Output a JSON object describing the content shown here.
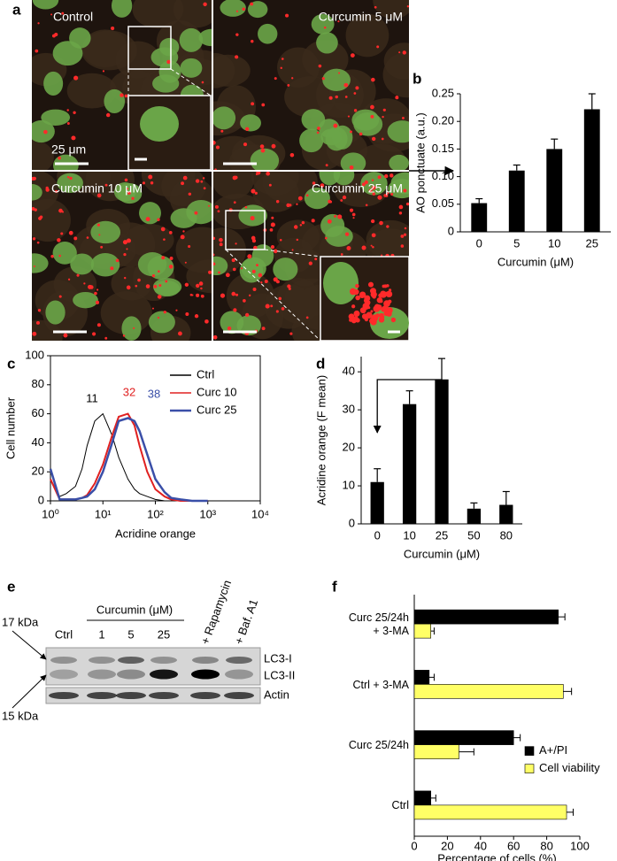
{
  "panel_labels": [
    "a",
    "b",
    "c",
    "d",
    "e",
    "f"
  ],
  "micrographs": {
    "labels": [
      "Control",
      "Curcumin 5 μM",
      "Curcumin 10 μM",
      "Curcumin 25 μM"
    ],
    "scale_label": "25 μm"
  },
  "blot": {
    "header": "Curcumin (μM)",
    "lanes": [
      "Ctrl",
      "1",
      "5",
      "25",
      "+ Rapamycin",
      "+ Baf. A1"
    ],
    "bands": [
      "LC3-I",
      "LC3-II",
      "Actin"
    ],
    "markers": [
      "17 kDa",
      "15 kDa"
    ]
  },
  "chart_data": [
    {
      "type": "bar",
      "ylabel": "AO ponctuate (a.u.)",
      "xlabel": "Curcumin (μM)",
      "categories": [
        "0",
        "5",
        "10",
        "25"
      ],
      "values": [
        0.052,
        0.111,
        0.15,
        0.222
      ],
      "errors": [
        0.008,
        0.01,
        0.018,
        0.028
      ],
      "color": "#000000",
      "ylim": [
        0,
        0.25
      ],
      "yticks": [
        0,
        0.05,
        {
          "value": 0.1,
          "label": "0.10"
        },
        0.15,
        {
          "value": 0.2,
          "label": "0.20"
        },
        0.25
      ]
    },
    {
      "type": "line",
      "xscale": "log",
      "ylabel": "Cell number",
      "xlabel": "Acridine orange",
      "x": [
        1,
        1.5,
        2,
        3,
        4,
        5,
        7,
        10,
        15,
        20,
        30,
        40,
        50,
        70,
        100,
        150,
        200,
        300,
        500,
        1000
      ],
      "series": [
        {
          "name": "Ctrl",
          "color": "#000000",
          "values": [
            15,
            3,
            5,
            10,
            22,
            38,
            55,
            60,
            45,
            30,
            15,
            8,
            5,
            3,
            1,
            0,
            0,
            0,
            0,
            0
          ]
        },
        {
          "name": "Curc 10",
          "color": "#e02020",
          "values": [
            15,
            1,
            1,
            1,
            2,
            4,
            12,
            25,
            45,
            58,
            60,
            52,
            38,
            20,
            8,
            3,
            1,
            0,
            0,
            0
          ]
        },
        {
          "name": "Curc 25",
          "color": "#3a4fa8",
          "values": [
            22,
            1,
            1,
            1,
            2,
            3,
            8,
            20,
            40,
            55,
            57,
            55,
            48,
            32,
            15,
            6,
            2,
            1,
            0,
            0
          ]
        }
      ],
      "xlim": [
        1,
        10000
      ],
      "xticks": [
        {
          "value": 1,
          "label": "10⁰"
        },
        {
          "value": 10,
          "label": "10¹"
        },
        {
          "value": 100,
          "label": "10²"
        },
        {
          "value": 1000,
          "label": "10³"
        },
        {
          "value": 10000,
          "label": "10⁴"
        }
      ],
      "ylim": [
        0,
        100
      ],
      "yticks": [
        0,
        20,
        40,
        60,
        80,
        100
      ],
      "legend": "upper right",
      "annotations": [
        "11",
        "32",
        "38"
      ]
    },
    {
      "type": "bar",
      "ylabel": "Acridine orange (F mean)",
      "xlabel": "Curcumin (μM)",
      "categories": [
        "0",
        "10",
        "25",
        "50",
        "80"
      ],
      "values": [
        11,
        31.5,
        38,
        4,
        5
      ],
      "errors": [
        3.5,
        3.5,
        5.5,
        1.5,
        3.5
      ],
      "color": "#000000",
      "ylim": [
        0,
        44
      ],
      "yticks": [
        0,
        10,
        20,
        30,
        40
      ]
    },
    {
      "type": "bar",
      "orientation": "horizontal",
      "xlabel": "Percentage of cells (%)",
      "categories": [
        "Ctrl",
        "Curc 25/24h",
        "Ctrl + 3-MA",
        "Curc 25/24h\n+ 3-MA"
      ],
      "series": [
        {
          "name": "A+/PI",
          "color": "#000000",
          "values": [
            10,
            60,
            9,
            87
          ],
          "errors": [
            3,
            4,
            3,
            4
          ]
        },
        {
          "name": "Cell viability",
          "color": "#ffff66",
          "values": [
            92,
            27,
            90,
            10
          ],
          "errors": [
            4,
            9,
            5,
            2
          ]
        }
      ],
      "xlim": [
        0,
        100
      ],
      "xticks": [
        0,
        20,
        40,
        60,
        80,
        100
      ],
      "legend": "center right"
    }
  ]
}
